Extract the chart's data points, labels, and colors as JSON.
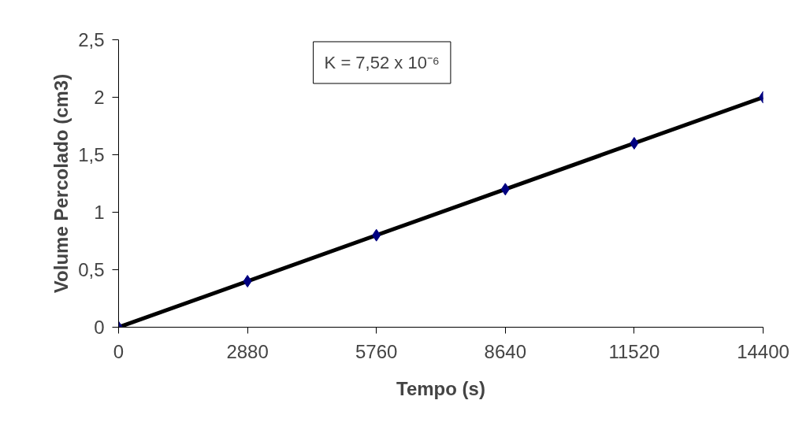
{
  "chart_data": {
    "type": "scatter",
    "xlabel": "Tempo (s)",
    "ylabel": "Volume Percolado (cm3)",
    "x": [
      0,
      2880,
      5760,
      8640,
      11520,
      14400
    ],
    "series": [
      {
        "type": "line",
        "color": "#000000",
        "x": [
          0,
          14400
        ],
        "values": [
          0,
          2.0
        ],
        "marker": "none"
      },
      {
        "type": "scatter",
        "color": "#000080",
        "values": [
          0,
          0.4,
          0.8,
          1.2,
          1.6,
          2.0
        ],
        "marker": "diamond"
      }
    ],
    "xlim": [
      0,
      14400
    ],
    "xticks": [
      0,
      2880,
      5760,
      8640,
      11520,
      14400
    ],
    "ylim": [
      0,
      2.5
    ],
    "yticks": [
      0,
      {
        "value": 0.5,
        "label": "0,5"
      },
      1,
      {
        "value": 1.5,
        "label": "1,5"
      },
      2,
      {
        "value": 2.5,
        "label": "2,5"
      }
    ],
    "grid": false,
    "annotations": [
      "K = 7,52 x 10⁻⁶"
    ]
  }
}
